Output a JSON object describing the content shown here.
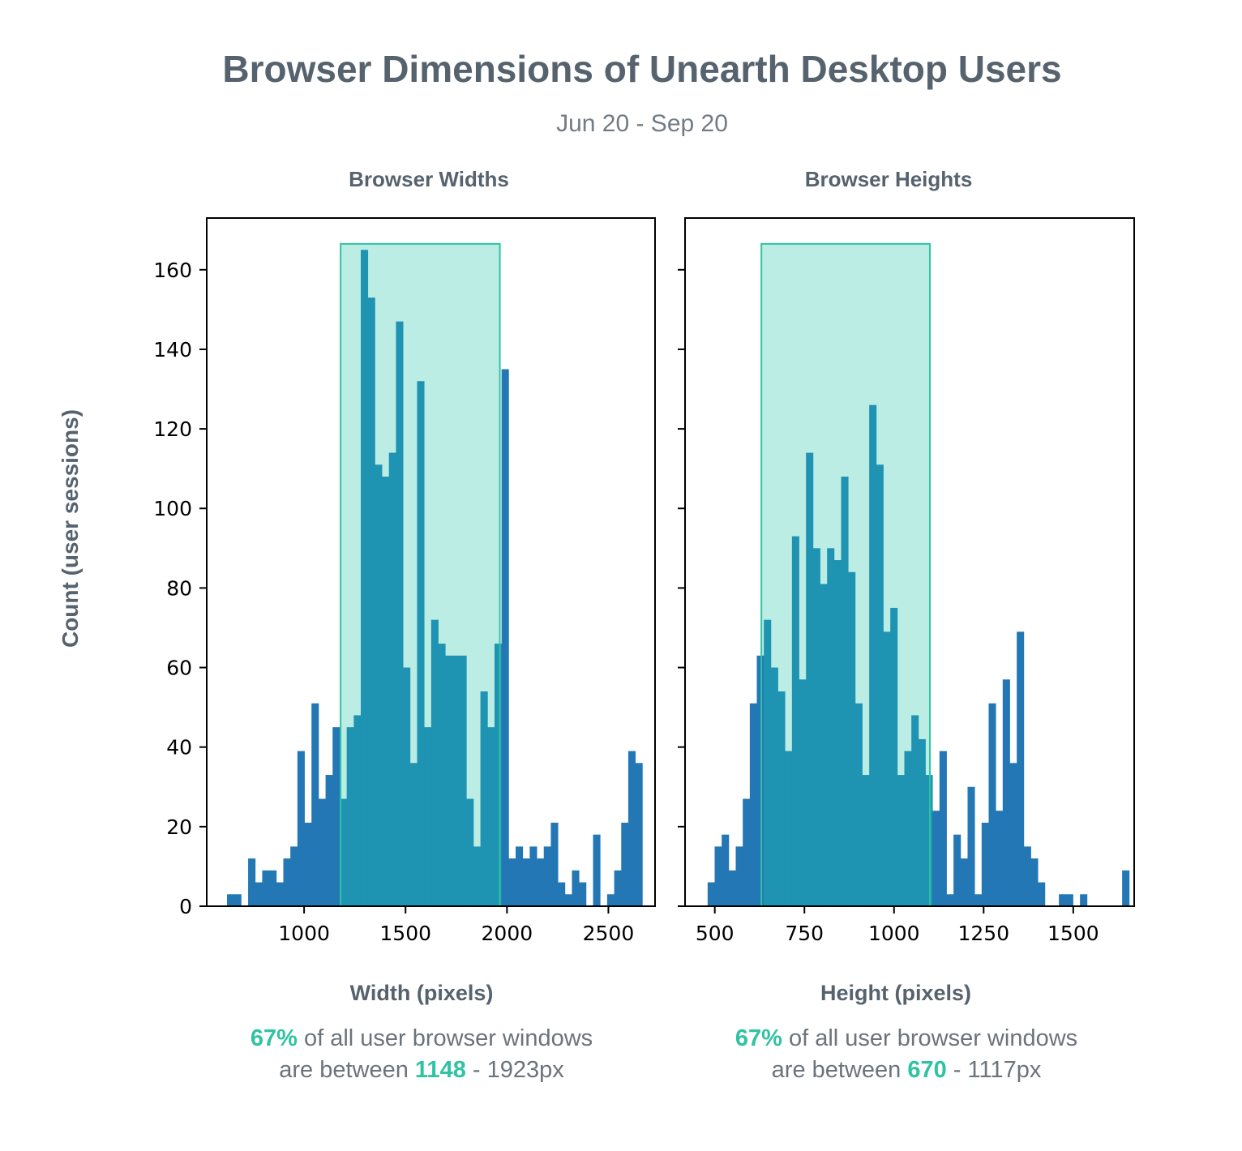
{
  "title": "Browser Dimensions of Unearth Desktop Users",
  "subtitle": "Jun 20 - Sep 20",
  "ylabel": "Count (user sessions)",
  "colors": {
    "bar": "#2277b4",
    "bar_in_band": "#1f93b2",
    "band_fill": "#bcede4",
    "band_stroke": "#2fc3a3",
    "highlight": "#2fc3a3",
    "text_dark": "#56626e"
  },
  "panels": [
    {
      "panel_title": "Browser Widths",
      "xlabel": "Width (pixels)",
      "caption": {
        "pct": "67%",
        "line1_rest": " of all user browser windows",
        "line2_prefix": "are between ",
        "low": "1148",
        "high_text": " - 1923px"
      }
    },
    {
      "panel_title": "Browser Heights",
      "xlabel": "Height (pixels)",
      "caption": {
        "pct": "67%",
        "line1_rest": " of all user browser windows",
        "line2_prefix": "are between ",
        "low": "670",
        "high_text": " - 1117px"
      }
    }
  ],
  "chart_data": [
    {
      "type": "bar",
      "subtype": "histogram",
      "title": "Browser Widths",
      "xlabel": "Width (pixels)",
      "ylabel": "Count (user sessions)",
      "xlim": [
        520,
        2730
      ],
      "ylim": [
        0,
        173
      ],
      "xticks": [
        1000,
        1500,
        2000,
        2500
      ],
      "yticks": [
        0,
        20,
        40,
        60,
        80,
        100,
        120,
        140,
        160
      ],
      "bin_width": 34.7,
      "bin_start": 620,
      "values": [
        3,
        3,
        0,
        12,
        6,
        9,
        9,
        6,
        12,
        15,
        39,
        21,
        51,
        27,
        33,
        45,
        27,
        45,
        48,
        165,
        153,
        111,
        108,
        114,
        147,
        60,
        36,
        132,
        45,
        72,
        66,
        63,
        63,
        63,
        27,
        15,
        54,
        45,
        66,
        135,
        12,
        15,
        12,
        15,
        12,
        15,
        21,
        6,
        3,
        9,
        6,
        0,
        18,
        0,
        3,
        9,
        21,
        39,
        36
      ],
      "band": {
        "x0": 1180,
        "x1": 1965,
        "y_top": 166.5
      }
    },
    {
      "type": "bar",
      "subtype": "histogram",
      "title": "Browser Heights",
      "xlabel": "Height (pixels)",
      "ylabel": "Count (user sessions)",
      "xlim": [
        417,
        1670
      ],
      "ylim": [
        0,
        173
      ],
      "xticks": [
        500,
        750,
        1000,
        1250,
        1500
      ],
      "yticks": [
        0,
        20,
        40,
        60,
        80,
        100,
        120,
        140,
        160
      ],
      "bin_width": 19.6,
      "bin_start": 480,
      "values": [
        6,
        15,
        18,
        9,
        15,
        27,
        51,
        63,
        72,
        60,
        54,
        39,
        93,
        57,
        114,
        90,
        81,
        90,
        87,
        108,
        84,
        51,
        33,
        126,
        111,
        69,
        75,
        33,
        39,
        48,
        42,
        33,
        24,
        39,
        3,
        18,
        12,
        30,
        3,
        21,
        51,
        24,
        57,
        36,
        69,
        15,
        12,
        6,
        0,
        0,
        3,
        3,
        0,
        3,
        0,
        0,
        0,
        0,
        0,
        9
      ],
      "band": {
        "x0": 630,
        "x1": 1100,
        "y_top": 166.5
      }
    }
  ]
}
